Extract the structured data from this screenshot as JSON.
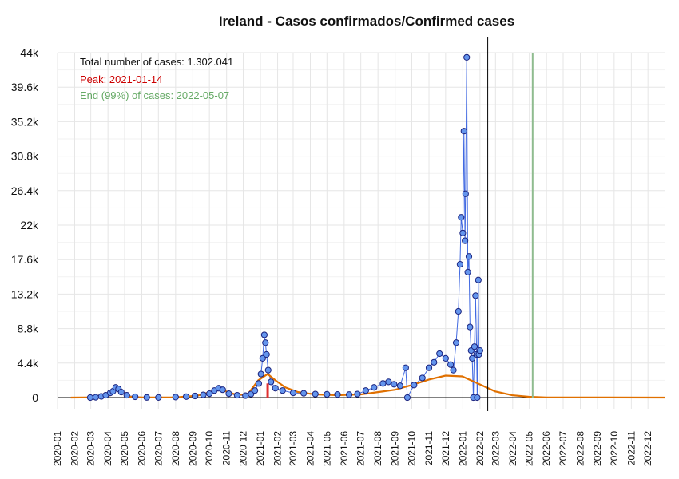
{
  "chart_data": {
    "type": "line",
    "title": "Ireland - Casos confirmados/Confirmed cases",
    "xlabel": "",
    "ylabel": "",
    "ylim": [
      0,
      44000
    ],
    "y_ticks": [
      "0",
      "4.4k",
      "8.8k",
      "13.2k",
      "17.6k",
      "22k",
      "26.4k",
      "30.8k",
      "35.2k",
      "39.6k",
      "44k"
    ],
    "y_tick_values": [
      0,
      4400,
      8800,
      13200,
      17600,
      22000,
      26400,
      30800,
      35200,
      39600,
      44000
    ],
    "x_range": [
      "2020-01-01",
      "2022-12-31"
    ],
    "x_ticks": [
      "2020-01",
      "2020-02",
      "2020-03",
      "2020-04",
      "2020-05",
      "2020-06",
      "2020-07",
      "2020-08",
      "2020-09",
      "2020-10",
      "2020-11",
      "2020-12",
      "2021-01",
      "2021-02",
      "2021-03",
      "2021-04",
      "2021-05",
      "2021-06",
      "2021-07",
      "2021-08",
      "2021-09",
      "2021-10",
      "2021-11",
      "2021-12",
      "2022-01",
      "2022-02",
      "2022-03",
      "2022-04",
      "2022-05",
      "2022-06",
      "2022-07",
      "2022-08",
      "2022-09",
      "2022-10",
      "2022-11",
      "2022-12"
    ],
    "grid": true,
    "annotations": {
      "total": "Total number of cases: 1.302.041",
      "peak": "Peak: 2021-01-14",
      "end": "End (99%) of cases: 2022-05-07"
    },
    "today_line_date": "2022-02-15",
    "peak_line": {
      "date": "2021-01-14",
      "value": 1800
    },
    "end_line_date": "2022-05-07",
    "colors": {
      "points_fill": "#6495ED",
      "points_edge": "#1a237e",
      "observed_line": "#4169E1",
      "fitted_curve": "#E07000",
      "peak_text": "#cc0000",
      "end_text": "#66aa66",
      "end_line": "#8fbc8f"
    },
    "series": [
      {
        "kind": "observed",
        "points": [
          [
            "2020-02-29",
            0
          ],
          [
            "2020-03-10",
            40
          ],
          [
            "2020-03-20",
            150
          ],
          [
            "2020-03-28",
            300
          ],
          [
            "2020-04-05",
            600
          ],
          [
            "2020-04-10",
            800
          ],
          [
            "2020-04-15",
            1300
          ],
          [
            "2020-04-20",
            1100
          ],
          [
            "2020-04-25",
            700
          ],
          [
            "2020-05-05",
            300
          ],
          [
            "2020-05-20",
            100
          ],
          [
            "2020-06-10",
            20
          ],
          [
            "2020-07-01",
            15
          ],
          [
            "2020-08-01",
            60
          ],
          [
            "2020-08-20",
            120
          ],
          [
            "2020-09-05",
            200
          ],
          [
            "2020-09-20",
            350
          ],
          [
            "2020-10-01",
            500
          ],
          [
            "2020-10-10",
            900
          ],
          [
            "2020-10-18",
            1200
          ],
          [
            "2020-10-25",
            1000
          ],
          [
            "2020-11-05",
            500
          ],
          [
            "2020-11-20",
            300
          ],
          [
            "2020-12-05",
            250
          ],
          [
            "2020-12-15",
            450
          ],
          [
            "2020-12-22",
            900
          ],
          [
            "2020-12-29",
            1800
          ],
          [
            "2021-01-02",
            3000
          ],
          [
            "2021-01-05",
            5000
          ],
          [
            "2021-01-08",
            8000
          ],
          [
            "2021-01-10",
            7000
          ],
          [
            "2021-01-12",
            5500
          ],
          [
            "2021-01-15",
            3500
          ],
          [
            "2021-01-20",
            2000
          ],
          [
            "2021-01-28",
            1200
          ],
          [
            "2021-02-10",
            900
          ],
          [
            "2021-03-01",
            600
          ],
          [
            "2021-03-20",
            550
          ],
          [
            "2021-04-10",
            450
          ],
          [
            "2021-05-01",
            420
          ],
          [
            "2021-05-20",
            400
          ],
          [
            "2021-06-10",
            380
          ],
          [
            "2021-06-25",
            450
          ],
          [
            "2021-07-10",
            900
          ],
          [
            "2021-07-25",
            1300
          ],
          [
            "2021-08-10",
            1800
          ],
          [
            "2021-08-20",
            2000
          ],
          [
            "2021-08-30",
            1700
          ],
          [
            "2021-09-10",
            1500
          ],
          [
            "2021-09-20",
            3800
          ],
          [
            "2021-09-23",
            0
          ],
          [
            "2021-10-05",
            1600
          ],
          [
            "2021-10-20",
            2500
          ],
          [
            "2021-11-01",
            3800
          ],
          [
            "2021-11-10",
            4500
          ],
          [
            "2021-11-20",
            5600
          ],
          [
            "2021-12-01",
            5000
          ],
          [
            "2021-12-10",
            4200
          ],
          [
            "2021-12-15",
            3500
          ],
          [
            "2021-12-20",
            7000
          ],
          [
            "2021-12-24",
            11000
          ],
          [
            "2021-12-27",
            17000
          ],
          [
            "2021-12-29",
            23000
          ],
          [
            "2022-01-01",
            21000
          ],
          [
            "2022-01-03",
            34000
          ],
          [
            "2022-01-05",
            20000
          ],
          [
            "2022-01-06",
            26000
          ],
          [
            "2022-01-08",
            43400
          ],
          [
            "2022-01-10",
            16000
          ],
          [
            "2022-01-12",
            18000
          ],
          [
            "2022-01-14",
            9000
          ],
          [
            "2022-01-16",
            6000
          ],
          [
            "2022-01-18",
            5000
          ],
          [
            "2022-01-20",
            0
          ],
          [
            "2022-01-22",
            6500
          ],
          [
            "2022-01-24",
            13000
          ],
          [
            "2022-01-26",
            5500
          ],
          [
            "2022-01-27",
            0
          ],
          [
            "2022-01-29",
            15000
          ],
          [
            "2022-01-30",
            5500
          ],
          [
            "2022-02-01",
            6000
          ]
        ]
      },
      {
        "kind": "fitted",
        "points": [
          [
            "2020-01-25",
            0
          ],
          [
            "2020-03-15",
            30
          ],
          [
            "2020-04-05",
            300
          ],
          [
            "2020-04-15",
            1150
          ],
          [
            "2020-04-28",
            700
          ],
          [
            "2020-05-10",
            120
          ],
          [
            "2020-06-01",
            10
          ],
          [
            "2020-08-01",
            30
          ],
          [
            "2020-09-10",
            250
          ],
          [
            "2020-10-01",
            700
          ],
          [
            "2020-10-20",
            1000
          ],
          [
            "2020-11-05",
            700
          ],
          [
            "2020-11-20",
            300
          ],
          [
            "2020-12-10",
            500
          ],
          [
            "2020-12-28",
            2200
          ],
          [
            "2021-01-14",
            3000
          ],
          [
            "2021-01-28",
            2200
          ],
          [
            "2021-02-15",
            1300
          ],
          [
            "2021-03-10",
            700
          ],
          [
            "2021-04-10",
            400
          ],
          [
            "2021-05-20",
            300
          ],
          [
            "2021-07-01",
            400
          ],
          [
            "2021-08-01",
            700
          ],
          [
            "2021-09-01",
            1000
          ],
          [
            "2021-10-01",
            1600
          ],
          [
            "2021-11-01",
            2300
          ],
          [
            "2021-12-01",
            2800
          ],
          [
            "2021-12-31",
            2700
          ],
          [
            "2022-01-31",
            1700
          ],
          [
            "2022-02-28",
            800
          ],
          [
            "2022-03-31",
            300
          ],
          [
            "2022-04-30",
            100
          ],
          [
            "2022-06-01",
            20
          ],
          [
            "2022-12-31",
            0
          ]
        ]
      }
    ]
  }
}
